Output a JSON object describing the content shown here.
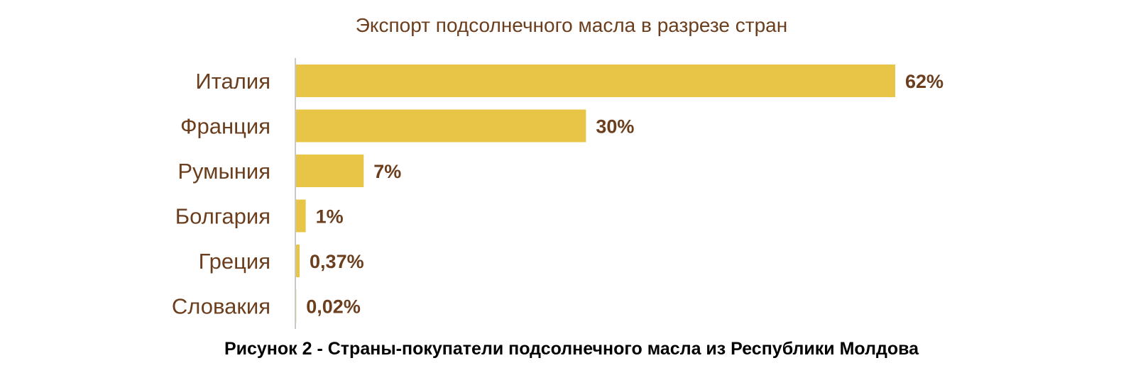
{
  "chart_data": {
    "type": "bar",
    "orientation": "horizontal",
    "title": "Экспорт подсолнечного масла в разрезе стран",
    "categories": [
      "Италия",
      "Франция",
      "Румыния",
      "Болгария",
      "Греция",
      "Словакия"
    ],
    "values": [
      62,
      30,
      7,
      1,
      0.37,
      0.02
    ],
    "value_labels": [
      "62%",
      "30%",
      "7%",
      "1%",
      "0,37%",
      "0,02%"
    ],
    "xlabel": "",
    "ylabel": "",
    "xlim": [
      0,
      62
    ],
    "grid": false,
    "legend": "none",
    "colors": {
      "bar": "#e8c547",
      "text": "#6b3e1e",
      "axis": "#c8c8c8"
    }
  },
  "caption": "Рисунок 2 - Страны-покупатели подсолнечного масла из Республики Молдова"
}
